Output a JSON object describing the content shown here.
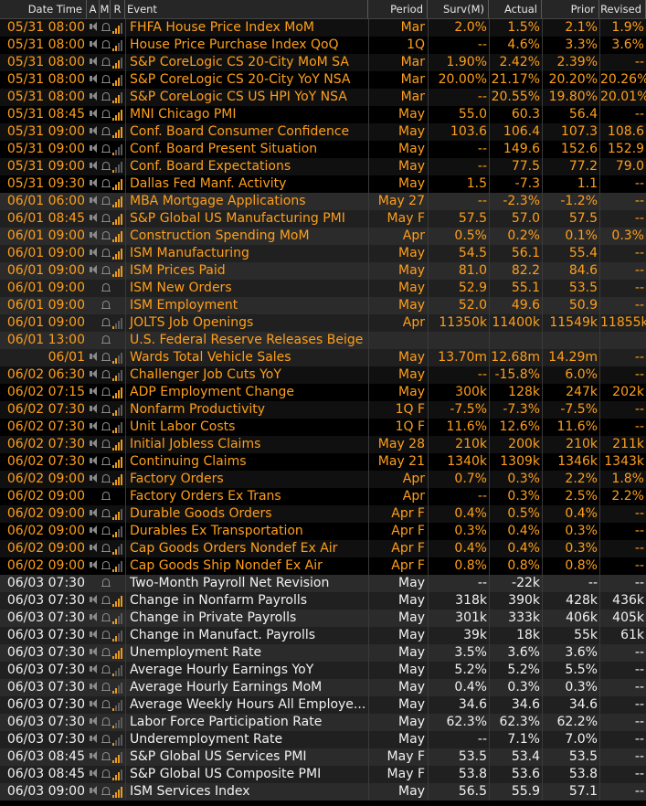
{
  "colors": {
    "accent": "#ff9f1a",
    "text": "#f2f2f2",
    "header_bg": "#262626"
  },
  "columns": {
    "datetime": "Date Time",
    "a": "A",
    "m": "M",
    "r": "R",
    "event": "Event",
    "period": "Period",
    "survey": "Surv(M)",
    "actual": "Actual",
    "prior": "Prior",
    "revised": "Revised"
  },
  "rows": [
    {
      "dt": "05/31 08:00",
      "spk": true,
      "rel": 3,
      "event": "FHFA House Price Index MoM",
      "period": "Mar",
      "surv": "2.0%",
      "actual": "1.5%",
      "prior": "2.1%",
      "revised": "1.9%",
      "color": "orange",
      "group": 1
    },
    {
      "dt": "05/31 08:00",
      "spk": true,
      "rel": 2,
      "event": "House Price Purchase Index QoQ",
      "period": "1Q",
      "surv": "--",
      "actual": "4.6%",
      "prior": "3.3%",
      "revised": "3.6%",
      "color": "orange",
      "group": 1
    },
    {
      "dt": "05/31 08:00",
      "spk": true,
      "rel": 3,
      "event": "S&P CoreLogic CS 20-City MoM SA",
      "period": "Mar",
      "surv": "1.90%",
      "actual": "2.42%",
      "prior": "2.39%",
      "revised": "--",
      "color": "orange",
      "group": 1
    },
    {
      "dt": "05/31 08:00",
      "spk": true,
      "rel": 3,
      "event": "S&P CoreLogic CS 20-City YoY NSA",
      "period": "Mar",
      "surv": "20.00%",
      "actual": "21.17%",
      "prior": "20.20%",
      "revised": "20.26%",
      "color": "orange",
      "group": 1
    },
    {
      "dt": "05/31 08:00",
      "spk": true,
      "rel": 3,
      "event": "S&P CoreLogic CS US HPI YoY NSA",
      "period": "Mar",
      "surv": "--",
      "actual": "20.55%",
      "prior": "19.80%",
      "revised": "20.01%",
      "color": "orange",
      "group": 1
    },
    {
      "dt": "05/31 08:45",
      "spk": true,
      "rel": 4,
      "event": "MNI Chicago PMI",
      "period": "May",
      "surv": "55.0",
      "actual": "60.3",
      "prior": "56.4",
      "revised": "--",
      "color": "orange",
      "group": 1
    },
    {
      "dt": "05/31 09:00",
      "spk": true,
      "rel": 4,
      "event": "Conf. Board Consumer Confidence",
      "period": "May",
      "surv": "103.6",
      "actual": "106.4",
      "prior": "107.3",
      "revised": "108.6",
      "color": "orange",
      "group": 1
    },
    {
      "dt": "05/31 09:00",
      "spk": true,
      "rel": 1,
      "event": "Conf. Board Present Situation",
      "period": "May",
      "surv": "--",
      "actual": "149.6",
      "prior": "152.6",
      "revised": "152.9",
      "color": "orange",
      "group": 1
    },
    {
      "dt": "05/31 09:00",
      "spk": true,
      "rel": 1,
      "event": "Conf. Board Expectations",
      "period": "May",
      "surv": "--",
      "actual": "77.5",
      "prior": "77.2",
      "revised": "79.0",
      "color": "orange",
      "group": 1
    },
    {
      "dt": "05/31 09:30",
      "spk": true,
      "rel": 4,
      "event": "Dallas Fed Manf. Activity",
      "period": "May",
      "surv": "1.5",
      "actual": "-7.3",
      "prior": "1.1",
      "revised": "--",
      "color": "orange",
      "group": 1
    },
    {
      "dt": "06/01 06:00",
      "spk": true,
      "rel": 4,
      "event": "MBA Mortgage Applications",
      "period": "May 27",
      "surv": "--",
      "actual": "-2.3%",
      "prior": "-1.2%",
      "revised": "--",
      "color": "orange",
      "group": 2
    },
    {
      "dt": "06/01 08:45",
      "spk": true,
      "rel": 4,
      "event": "S&P Global US Manufacturing PMI",
      "period": "May F",
      "surv": "57.5",
      "actual": "57.0",
      "prior": "57.5",
      "revised": "--",
      "color": "orange",
      "group": 2
    },
    {
      "dt": "06/01 09:00",
      "spk": true,
      "rel": 4,
      "event": "Construction Spending MoM",
      "period": "Apr",
      "surv": "0.5%",
      "actual": "0.2%",
      "prior": "0.1%",
      "revised": "0.3%",
      "color": "orange",
      "group": 2
    },
    {
      "dt": "06/01 09:00",
      "spk": true,
      "rel": 4,
      "event": "ISM Manufacturing",
      "period": "May",
      "surv": "54.5",
      "actual": "56.1",
      "prior": "55.4",
      "revised": "--",
      "color": "orange",
      "group": 2
    },
    {
      "dt": "06/01 09:00",
      "spk": true,
      "rel": 4,
      "event": "ISM Prices Paid",
      "period": "May",
      "surv": "81.0",
      "actual": "82.2",
      "prior": "84.6",
      "revised": "--",
      "color": "orange",
      "group": 2
    },
    {
      "dt": "06/01 09:00",
      "spk": false,
      "rel": 0,
      "event": "ISM New Orders",
      "period": "May",
      "surv": "52.9",
      "actual": "55.1",
      "prior": "53.5",
      "revised": "--",
      "color": "orange",
      "group": 2
    },
    {
      "dt": "06/01 09:00",
      "spk": false,
      "rel": 0,
      "event": "ISM Employment",
      "period": "May",
      "surv": "52.0",
      "actual": "49.6",
      "prior": "50.9",
      "revised": "--",
      "color": "orange",
      "group": 2
    },
    {
      "dt": "06/01 09:00",
      "spk": false,
      "rel": 1,
      "event": "JOLTS Job Openings",
      "period": "Apr",
      "surv": "11350k",
      "actual": "11400k",
      "prior": "11549k",
      "revised": "11855k",
      "color": "orange",
      "group": 2
    },
    {
      "dt": "06/01 13:00",
      "spk": false,
      "rel": 0,
      "event": "U.S. Federal Reserve Releases Beige Book",
      "period": "",
      "surv": "",
      "actual": "",
      "prior": "",
      "revised": "",
      "color": "orange",
      "group": 2
    },
    {
      "dt": "06/01",
      "spk": true,
      "rel": 2,
      "event": "Wards Total Vehicle Sales",
      "period": "May",
      "surv": "13.70m",
      "actual": "12.68m",
      "prior": "14.29m",
      "revised": "--",
      "color": "orange",
      "group": 2
    },
    {
      "dt": "06/02 06:30",
      "spk": true,
      "rel": 2,
      "event": "Challenger Job Cuts YoY",
      "period": "May",
      "surv": "--",
      "actual": "-15.8%",
      "prior": "6.0%",
      "revised": "--",
      "color": "orange",
      "group": 1
    },
    {
      "dt": "06/02 07:15",
      "spk": true,
      "rel": 4,
      "event": "ADP Employment Change",
      "period": "May",
      "surv": "300k",
      "actual": "128k",
      "prior": "247k",
      "revised": "202k",
      "color": "orange",
      "group": 1
    },
    {
      "dt": "06/02 07:30",
      "spk": true,
      "rel": 2,
      "event": "Nonfarm Productivity",
      "period": "1Q F",
      "surv": "-7.5%",
      "actual": "-7.3%",
      "prior": "-7.5%",
      "revised": "--",
      "color": "orange",
      "group": 1
    },
    {
      "dt": "06/02 07:30",
      "spk": true,
      "rel": 2,
      "event": "Unit Labor Costs",
      "period": "1Q F",
      "surv": "11.6%",
      "actual": "12.6%",
      "prior": "11.6%",
      "revised": "--",
      "color": "orange",
      "group": 1
    },
    {
      "dt": "06/02 07:30",
      "spk": true,
      "rel": 4,
      "event": "Initial Jobless Claims",
      "period": "May 28",
      "surv": "210k",
      "actual": "200k",
      "prior": "210k",
      "revised": "211k",
      "color": "orange",
      "group": 1
    },
    {
      "dt": "06/02 07:30",
      "spk": true,
      "rel": 4,
      "event": "Continuing Claims",
      "period": "May 21",
      "surv": "1340k",
      "actual": "1309k",
      "prior": "1346k",
      "revised": "1343k",
      "color": "orange",
      "group": 1
    },
    {
      "dt": "06/02 09:00",
      "spk": true,
      "rel": 4,
      "event": "Factory Orders",
      "period": "Apr",
      "surv": "0.7%",
      "actual": "0.3%",
      "prior": "2.2%",
      "revised": "1.8%",
      "color": "orange",
      "group": 1
    },
    {
      "dt": "06/02 09:00",
      "spk": false,
      "rel": 0,
      "event": "Factory Orders Ex Trans",
      "period": "Apr",
      "surv": "--",
      "actual": "0.3%",
      "prior": "2.5%",
      "revised": "2.2%",
      "color": "orange",
      "group": 1
    },
    {
      "dt": "06/02 09:00",
      "spk": true,
      "rel": 3,
      "event": "Durable Goods Orders",
      "period": "Apr F",
      "surv": "0.4%",
      "actual": "0.5%",
      "prior": "0.4%",
      "revised": "--",
      "color": "orange",
      "group": 1
    },
    {
      "dt": "06/02 09:00",
      "spk": true,
      "rel": 2,
      "event": "Durables Ex Transportation",
      "period": "Apr F",
      "surv": "0.3%",
      "actual": "0.4%",
      "prior": "0.3%",
      "revised": "--",
      "color": "orange",
      "group": 1
    },
    {
      "dt": "06/02 09:00",
      "spk": true,
      "rel": 2,
      "event": "Cap Goods Orders Nondef Ex Air",
      "period": "Apr F",
      "surv": "0.4%",
      "actual": "0.4%",
      "prior": "0.3%",
      "revised": "--",
      "color": "orange",
      "group": 1
    },
    {
      "dt": "06/02 09:00",
      "spk": true,
      "rel": 2,
      "event": "Cap Goods Ship Nondef Ex Air",
      "period": "Apr F",
      "surv": "0.8%",
      "actual": "0.8%",
      "prior": "0.8%",
      "revised": "--",
      "color": "orange",
      "group": 1
    },
    {
      "dt": "06/03 07:30",
      "spk": false,
      "rel": 0,
      "event": "Two-Month Payroll Net Revision",
      "period": "May",
      "surv": "--",
      "actual": "-22k",
      "prior": "--",
      "revised": "--",
      "color": "white",
      "group": 2
    },
    {
      "dt": "06/03 07:30",
      "spk": true,
      "rel": 4,
      "event": "Change in Nonfarm Payrolls",
      "period": "May",
      "surv": "318k",
      "actual": "390k",
      "prior": "428k",
      "revised": "436k",
      "color": "white",
      "group": 2
    },
    {
      "dt": "06/03 07:30",
      "spk": true,
      "rel": 2,
      "event": "Change in Private Payrolls",
      "period": "May",
      "surv": "301k",
      "actual": "333k",
      "prior": "406k",
      "revised": "405k",
      "color": "white",
      "group": 2
    },
    {
      "dt": "06/03 07:30",
      "spk": true,
      "rel": 2,
      "event": "Change in Manufact. Payrolls",
      "period": "May",
      "surv": "39k",
      "actual": "18k",
      "prior": "55k",
      "revised": "61k",
      "color": "white",
      "group": 2
    },
    {
      "dt": "06/03 07:30",
      "spk": true,
      "rel": 4,
      "event": "Unemployment Rate",
      "period": "May",
      "surv": "3.5%",
      "actual": "3.6%",
      "prior": "3.6%",
      "revised": "--",
      "color": "white",
      "group": 2
    },
    {
      "dt": "06/03 07:30",
      "spk": true,
      "rel": 1,
      "event": "Average Hourly Earnings YoY",
      "period": "May",
      "surv": "5.2%",
      "actual": "5.2%",
      "prior": "5.5%",
      "revised": "--",
      "color": "white",
      "group": 2
    },
    {
      "dt": "06/03 07:30",
      "spk": true,
      "rel": 2,
      "event": "Average Hourly Earnings MoM",
      "period": "May",
      "surv": "0.4%",
      "actual": "0.3%",
      "prior": "0.3%",
      "revised": "--",
      "color": "white",
      "group": 2
    },
    {
      "dt": "06/03 07:30",
      "spk": true,
      "rel": 1,
      "event": "Average Weekly Hours All Employe...",
      "period": "May",
      "surv": "34.6",
      "actual": "34.6",
      "prior": "34.6",
      "revised": "--",
      "color": "white",
      "group": 2
    },
    {
      "dt": "06/03 07:30",
      "spk": true,
      "rel": 1,
      "event": "Labor Force Participation Rate",
      "period": "May",
      "surv": "62.3%",
      "actual": "62.3%",
      "prior": "62.2%",
      "revised": "--",
      "color": "white",
      "group": 2
    },
    {
      "dt": "06/03 07:30",
      "spk": true,
      "rel": 1,
      "event": "Underemployment Rate",
      "period": "May",
      "surv": "--",
      "actual": "7.1%",
      "prior": "7.0%",
      "revised": "--",
      "color": "white",
      "group": 2
    },
    {
      "dt": "06/03 08:45",
      "spk": true,
      "rel": 3,
      "event": "S&P Global US Services PMI",
      "period": "May F",
      "surv": "53.5",
      "actual": "53.4",
      "prior": "53.5",
      "revised": "--",
      "color": "white",
      "group": 2
    },
    {
      "dt": "06/03 08:45",
      "spk": true,
      "rel": 3,
      "event": "S&P Global US Composite PMI",
      "period": "May F",
      "surv": "53.8",
      "actual": "53.6",
      "prior": "53.8",
      "revised": "--",
      "color": "white",
      "group": 2
    },
    {
      "dt": "06/03 09:00",
      "spk": true,
      "rel": 4,
      "event": "ISM Services Index",
      "period": "May",
      "surv": "56.5",
      "actual": "55.9",
      "prior": "57.1",
      "revised": "--",
      "color": "white",
      "group": 2
    }
  ]
}
